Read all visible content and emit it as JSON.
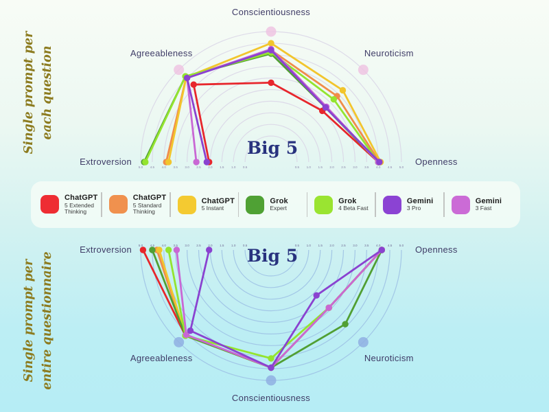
{
  "page": {
    "side_labels": {
      "top": [
        "Single prompt per",
        "each question"
      ],
      "bottom": [
        "Single prompt per",
        "entire questionnaire"
      ]
    }
  },
  "legend": {
    "entries": [
      {
        "name": "ChatGPT",
        "sub": "5 Extended Thinking",
        "color": "#ee2d33"
      },
      {
        "name": "ChatGPT",
        "sub": "5 Standard Thinking",
        "color": "#f0914e"
      },
      {
        "name": "ChatGPT",
        "sub": "5 Instant",
        "color": "#f4ca31"
      },
      {
        "name": "Grok",
        "sub": "Expert",
        "color": "#4fa134"
      },
      {
        "name": "Grok",
        "sub": "4 Beta Fast",
        "color": "#9ae431"
      },
      {
        "name": "Gemini",
        "sub": "3 Pro",
        "color": "#8b43d3"
      },
      {
        "name": "Gemini",
        "sub": "3 Fast",
        "color": "#cb6bd6"
      }
    ]
  },
  "chart_data": [
    {
      "type": "radar",
      "shape": "semicircle-up",
      "title": "Big 5",
      "context_label": "Single prompt per each question",
      "axes": [
        "Extroversion",
        "Agreeableness",
        "Conscientiousness",
        "Neuroticism",
        "Openness"
      ],
      "scale": {
        "min": 0.5,
        "max": 5.0,
        "step": 0.5
      },
      "tick_labels": [
        "0.5",
        "1.0",
        "1.5",
        "2.0",
        "2.5",
        "3.0",
        "3.5",
        "4.0",
        "4.5",
        "5.0"
      ],
      "grid": true,
      "ring_color": "#d9d5e6",
      "endpoint_dot_color": "#efc4e2",
      "axis_label_color": "#3e3b66",
      "tick_color": "#8d87ab",
      "title_color": "#28327e",
      "series": [
        {
          "name": "ChatGPT 5 Extended Thinking",
          "color": "#e7262c",
          "values": [
            2.05,
            4.1,
            2.8,
            2.5,
            4.0
          ]
        },
        {
          "name": "ChatGPT 5 Standard Thinking",
          "color": "#f08c4a",
          "values": [
            3.9,
            4.55,
            4.2,
            3.4,
            4.05
          ]
        },
        {
          "name": "ChatGPT 5 Instant",
          "color": "#f2c52d",
          "values": [
            3.8,
            4.55,
            4.5,
            3.75,
            4.1
          ]
        },
        {
          "name": "Grok Expert",
          "color": "#519f33",
          "values": [
            4.85,
            4.6,
            4.05,
            2.7,
            4.0
          ]
        },
        {
          "name": "Grok 4 Beta Fast",
          "color": "#94e42f",
          "values": [
            4.8,
            4.6,
            4.1,
            3.2,
            4.0
          ]
        },
        {
          "name": "Gemini 3 Pro",
          "color": "#8a42d0",
          "values": [
            2.15,
            4.5,
            4.2,
            2.7,
            4.05
          ]
        },
        {
          "name": "Gemini 3 Fast",
          "color": "#c967d4",
          "values": [
            2.6,
            4.5,
            4.25,
            2.75,
            4.0
          ]
        }
      ]
    },
    {
      "type": "radar",
      "shape": "semicircle-down",
      "title": "Big 5",
      "context_label": "Single prompt per entire questionnaire",
      "axes": [
        "Extroversion",
        "Agreeableness",
        "Conscientiousness",
        "Neuroticism",
        "Openness"
      ],
      "scale": {
        "min": 0.5,
        "max": 5.0,
        "step": 0.5
      },
      "tick_labels": [
        "0.5",
        "1.0",
        "1.5",
        "2.0",
        "2.5",
        "3.0",
        "3.5",
        "4.0",
        "4.5",
        "5.0"
      ],
      "grid": true,
      "ring_color": "#9cc0e4",
      "endpoint_dot_color": "#8fafe2",
      "axis_label_color": "#3e3b66",
      "tick_color": "#6f6a94",
      "title_color": "#28327e",
      "series": [
        {
          "name": "ChatGPT 5 Extended Thinking",
          "color": "#e7262c",
          "values": [
            4.9,
            4.6,
            4.45,
            2.9,
            4.15
          ]
        },
        {
          "name": "ChatGPT 5 Standard Thinking",
          "color": "#f08c4a",
          "values": [
            4.3,
            4.6,
            4.45,
            2.9,
            4.15
          ]
        },
        {
          "name": "ChatGPT 5 Instant",
          "color": "#f2c52d",
          "values": [
            4.2,
            4.6,
            4.45,
            2.9,
            4.15
          ]
        },
        {
          "name": "Grok Expert",
          "color": "#519f33",
          "values": [
            4.5,
            4.6,
            4.45,
            3.9,
            4.15
          ]
        },
        {
          "name": "Grok 4 Beta Fast",
          "color": "#94e42f",
          "values": [
            3.8,
            4.6,
            4.05,
            2.9,
            4.15
          ]
        },
        {
          "name": "Gemini 3 Pro",
          "color": "#8a42d0",
          "values": [
            2.05,
            4.3,
            4.45,
            2.15,
            4.15
          ]
        },
        {
          "name": "Gemini 3 Fast",
          "color": "#c967d4",
          "values": [
            3.45,
            4.55,
            4.45,
            2.9,
            4.15
          ]
        }
      ]
    }
  ]
}
